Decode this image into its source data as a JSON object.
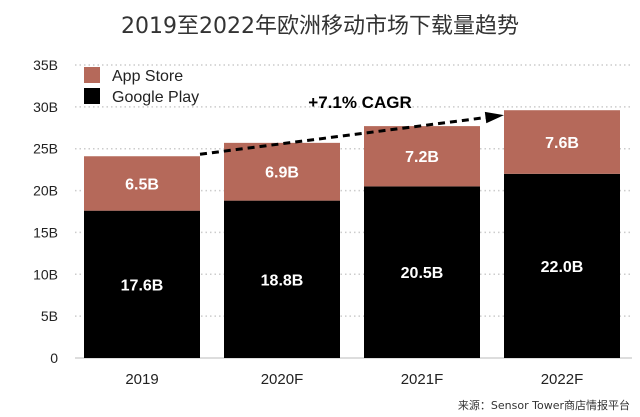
{
  "chart_data": {
    "type": "bar",
    "stacked": true,
    "title": "2019至2022年欧洲移动市场下载量趋势",
    "categories": [
      "2019",
      "2020F",
      "2021F",
      "2022F"
    ],
    "series": [
      {
        "name": "Google Play",
        "values": [
          17.6,
          18.8,
          20.5,
          22.0
        ],
        "labels": [
          "17.6B",
          "18.8B",
          "20.5B",
          "22.0B"
        ],
        "color": "#000000"
      },
      {
        "name": "App Store",
        "values": [
          6.5,
          6.9,
          7.2,
          7.6
        ],
        "labels": [
          "6.5B",
          "6.9B",
          "7.2B",
          "7.6B"
        ],
        "color": "#b5695a"
      }
    ],
    "ylim": [
      0,
      35
    ],
    "yticks": [
      "0",
      "5B",
      "10B",
      "15B",
      "20B",
      "25B",
      "30B",
      "35B"
    ],
    "grid": "dotted horizontal",
    "legend": "top-left",
    "annotation": "+7.1% CAGR",
    "source": "来源：Sensor Tower商店情报平台"
  }
}
